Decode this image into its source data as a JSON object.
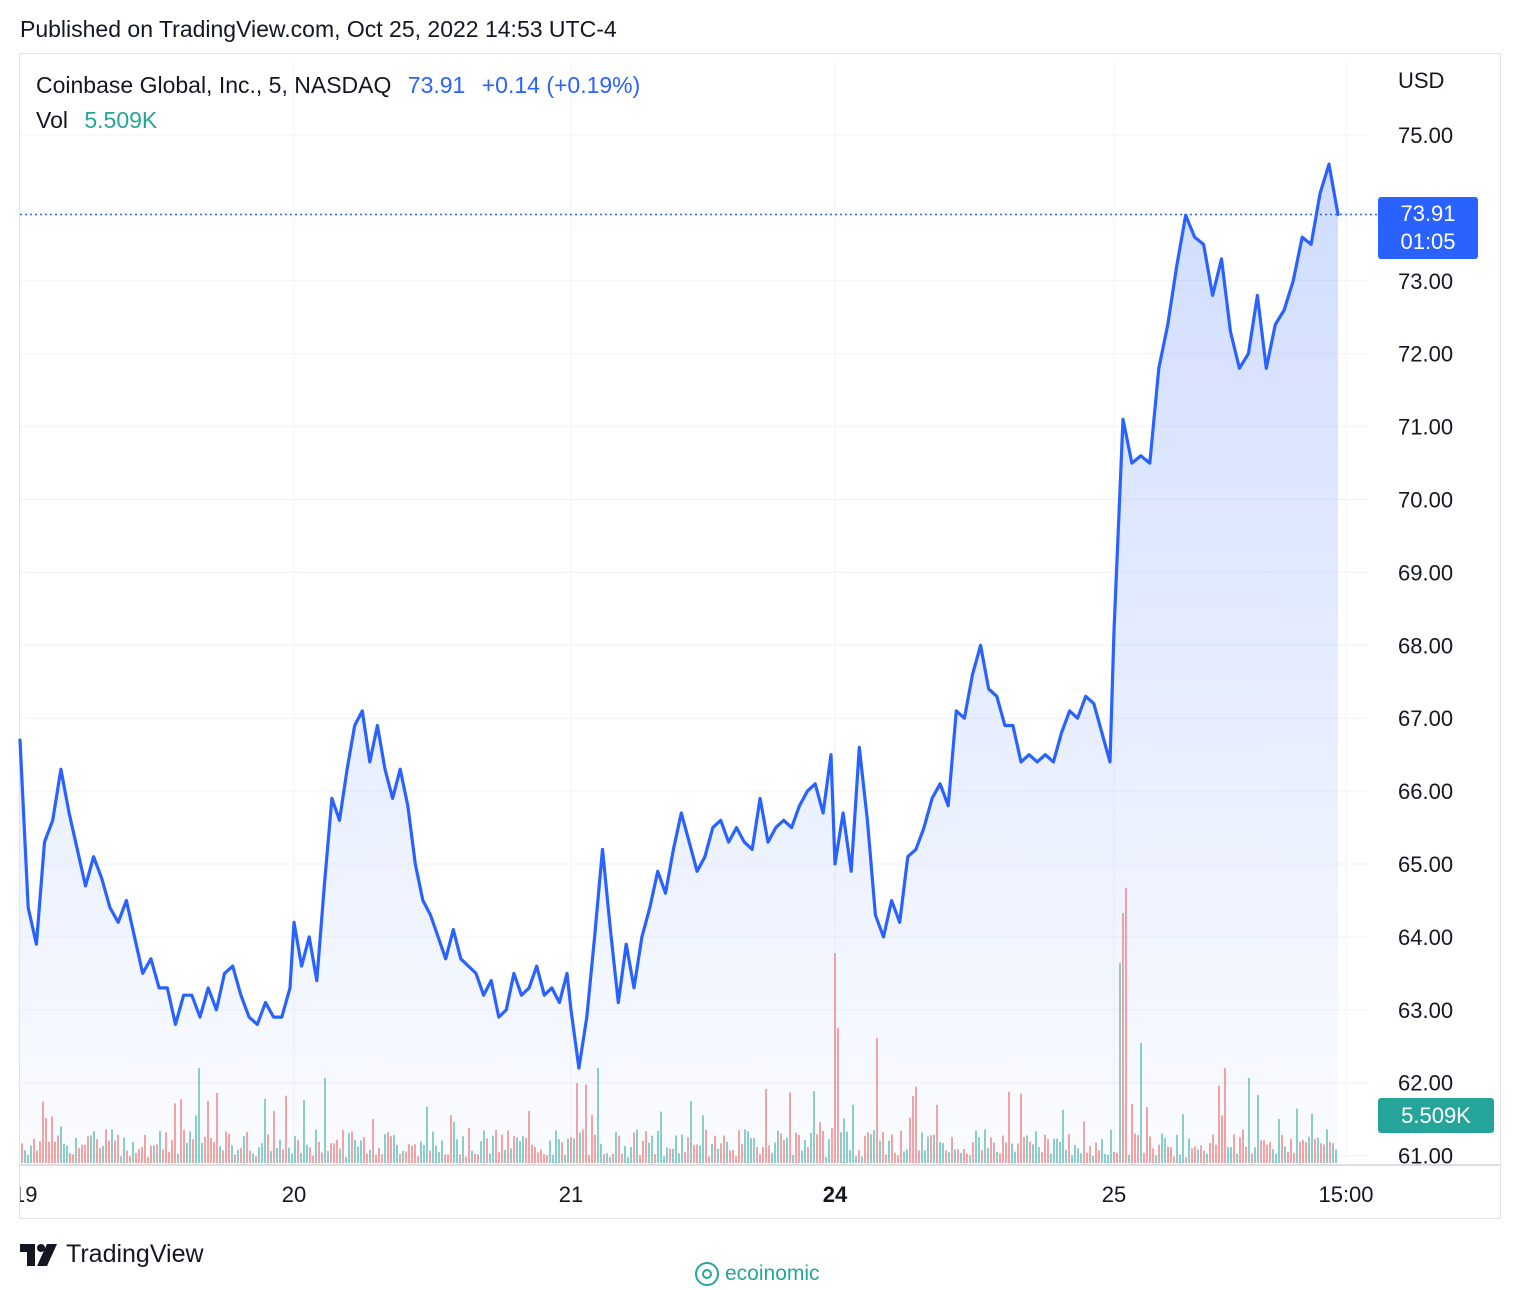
{
  "published": "Published on TradingView.com, Oct 25, 2022 14:53 UTC-4",
  "legend": {
    "symbol": "Coinbase Global, Inc., 5, NASDAQ",
    "last": "73.91",
    "change": "+0.14 (+0.19%)",
    "vol_label": "Vol",
    "vol_value": "5.509K"
  },
  "currency": "USD",
  "price_tag": {
    "price": "73.91",
    "countdown": "01:05"
  },
  "vol_tag": "5.509K",
  "branding": {
    "tradingview": "TradingView",
    "watermark": "ecoinomic"
  },
  "colors": {
    "line": "#2962ff",
    "up_volume": "#26a69a",
    "down_volume": "#ef5350",
    "grid": "#f0f3fa"
  },
  "chart_data": {
    "type": "area",
    "title": "Coinbase Global, Inc., 5, NASDAQ",
    "ylabel": "USD",
    "ylim": [
      61,
      75.5
    ],
    "y_ticks": [
      "75.00",
      "73.00",
      "72.00",
      "71.00",
      "70.00",
      "69.00",
      "68.00",
      "67.00",
      "66.00",
      "65.00",
      "64.00",
      "63.00",
      "62.00",
      "61.00"
    ],
    "x_ticks": [
      {
        "label": "19",
        "bold": false
      },
      {
        "label": "20",
        "bold": false
      },
      {
        "label": "21",
        "bold": false
      },
      {
        "label": "24",
        "bold": true
      },
      {
        "label": "25",
        "bold": false
      },
      {
        "label": "15:00",
        "bold": false
      }
    ],
    "grid": true,
    "last_price": 73.91,
    "series": [
      {
        "name": "Coinbase Global, Inc.",
        "points": [
          [
            "19",
            66.7
          ],
          [
            "19",
            64.4
          ],
          [
            "19",
            63.9
          ],
          [
            "19",
            65.3
          ],
          [
            "19",
            65.6
          ],
          [
            "19",
            66.3
          ],
          [
            "19",
            65.7
          ],
          [
            "19",
            65.2
          ],
          [
            "19",
            64.7
          ],
          [
            "19",
            65.1
          ],
          [
            "19",
            64.8
          ],
          [
            "19",
            64.4
          ],
          [
            "19",
            64.2
          ],
          [
            "19",
            64.5
          ],
          [
            "19",
            64.0
          ],
          [
            "19",
            63.5
          ],
          [
            "19",
            63.7
          ],
          [
            "19",
            63.3
          ],
          [
            "19",
            63.3
          ],
          [
            "19",
            62.8
          ],
          [
            "19",
            63.2
          ],
          [
            "19",
            63.2
          ],
          [
            "19",
            62.9
          ],
          [
            "19",
            63.3
          ],
          [
            "19",
            63.0
          ],
          [
            "19",
            63.5
          ],
          [
            "19",
            63.6
          ],
          [
            "19",
            63.2
          ],
          [
            "19",
            62.9
          ],
          [
            "19",
            62.8
          ],
          [
            "19",
            63.1
          ],
          [
            "19",
            62.9
          ],
          [
            "19",
            62.9
          ],
          [
            "19",
            63.3
          ],
          [
            "20",
            64.2
          ],
          [
            "20",
            63.6
          ],
          [
            "20",
            64.0
          ],
          [
            "20",
            63.4
          ],
          [
            "20",
            64.7
          ],
          [
            "20",
            65.9
          ],
          [
            "20",
            65.6
          ],
          [
            "20",
            66.3
          ],
          [
            "20",
            66.9
          ],
          [
            "20",
            67.1
          ],
          [
            "20",
            66.4
          ],
          [
            "20",
            66.9
          ],
          [
            "20",
            66.3
          ],
          [
            "20",
            65.9
          ],
          [
            "20",
            66.3
          ],
          [
            "20",
            65.8
          ],
          [
            "20",
            65.0
          ],
          [
            "20",
            64.5
          ],
          [
            "20",
            64.3
          ],
          [
            "20",
            64.0
          ],
          [
            "20",
            63.7
          ],
          [
            "20",
            64.1
          ],
          [
            "20",
            63.7
          ],
          [
            "20",
            63.6
          ],
          [
            "20",
            63.5
          ],
          [
            "20",
            63.2
          ],
          [
            "20",
            63.4
          ],
          [
            "20",
            62.9
          ],
          [
            "20",
            63.0
          ],
          [
            "20",
            63.5
          ],
          [
            "20",
            63.2
          ],
          [
            "20",
            63.3
          ],
          [
            "20",
            63.6
          ],
          [
            "20",
            63.2
          ],
          [
            "20",
            63.3
          ],
          [
            "20",
            63.1
          ],
          [
            "20",
            63.5
          ],
          [
            "21",
            63.0
          ],
          [
            "21",
            62.2
          ],
          [
            "21",
            62.9
          ],
          [
            "21",
            64.0
          ],
          [
            "21",
            65.2
          ],
          [
            "21",
            64.1
          ],
          [
            "21",
            63.1
          ],
          [
            "21",
            63.9
          ],
          [
            "21",
            63.3
          ],
          [
            "21",
            64.0
          ],
          [
            "21",
            64.4
          ],
          [
            "21",
            64.9
          ],
          [
            "21",
            64.6
          ],
          [
            "21",
            65.2
          ],
          [
            "21",
            65.7
          ],
          [
            "21",
            65.3
          ],
          [
            "21",
            64.9
          ],
          [
            "21",
            65.1
          ],
          [
            "21",
            65.5
          ],
          [
            "21",
            65.6
          ],
          [
            "21",
            65.3
          ],
          [
            "21",
            65.5
          ],
          [
            "21",
            65.3
          ],
          [
            "21",
            65.2
          ],
          [
            "21",
            65.9
          ],
          [
            "21",
            65.3
          ],
          [
            "21",
            65.5
          ],
          [
            "21",
            65.6
          ],
          [
            "21",
            65.5
          ],
          [
            "21",
            65.8
          ],
          [
            "21",
            66.0
          ],
          [
            "21",
            66.1
          ],
          [
            "21",
            65.7
          ],
          [
            "21",
            66.5
          ],
          [
            "24",
            65.0
          ],
          [
            "24",
            65.7
          ],
          [
            "24",
            64.9
          ],
          [
            "24",
            66.6
          ],
          [
            "24",
            65.6
          ],
          [
            "24",
            64.3
          ],
          [
            "24",
            64.0
          ],
          [
            "24",
            64.5
          ],
          [
            "24",
            64.2
          ],
          [
            "24",
            65.1
          ],
          [
            "24",
            65.2
          ],
          [
            "24",
            65.5
          ],
          [
            "24",
            65.9
          ],
          [
            "24",
            66.1
          ],
          [
            "24",
            65.8
          ],
          [
            "24",
            67.1
          ],
          [
            "24",
            67.0
          ],
          [
            "24",
            67.6
          ],
          [
            "24",
            68.0
          ],
          [
            "24",
            67.4
          ],
          [
            "24",
            67.3
          ],
          [
            "24",
            66.9
          ],
          [
            "24",
            66.9
          ],
          [
            "24",
            66.4
          ],
          [
            "24",
            66.5
          ],
          [
            "24",
            66.4
          ],
          [
            "24",
            66.5
          ],
          [
            "24",
            66.4
          ],
          [
            "24",
            66.8
          ],
          [
            "24",
            67.1
          ],
          [
            "24",
            67.0
          ],
          [
            "24",
            67.3
          ],
          [
            "24",
            67.2
          ],
          [
            "24",
            66.8
          ],
          [
            "24",
            66.4
          ],
          [
            "25",
            68.2
          ],
          [
            "25",
            71.1
          ],
          [
            "25",
            70.5
          ],
          [
            "25",
            70.6
          ],
          [
            "25",
            70.5
          ],
          [
            "25",
            71.8
          ],
          [
            "25",
            72.4
          ],
          [
            "25",
            73.2
          ],
          [
            "25",
            73.9
          ],
          [
            "25",
            73.6
          ],
          [
            "25",
            73.5
          ],
          [
            "25",
            72.8
          ],
          [
            "25",
            73.3
          ],
          [
            "25",
            72.3
          ],
          [
            "25",
            71.8
          ],
          [
            "25",
            72.0
          ],
          [
            "25",
            72.8
          ],
          [
            "25",
            71.8
          ],
          [
            "25",
            72.4
          ],
          [
            "25",
            72.6
          ],
          [
            "25",
            73.0
          ],
          [
            "25",
            73.6
          ],
          [
            "25",
            73.5
          ],
          [
            "25",
            74.2
          ],
          [
            "25",
            74.6
          ],
          [
            "25",
            73.91
          ]
        ]
      }
    ],
    "volume": {
      "name": "Vol",
      "last": "5.509K",
      "peaks": [
        [
          "25",
          "high"
        ],
        [
          "24",
          "high"
        ]
      ]
    }
  }
}
